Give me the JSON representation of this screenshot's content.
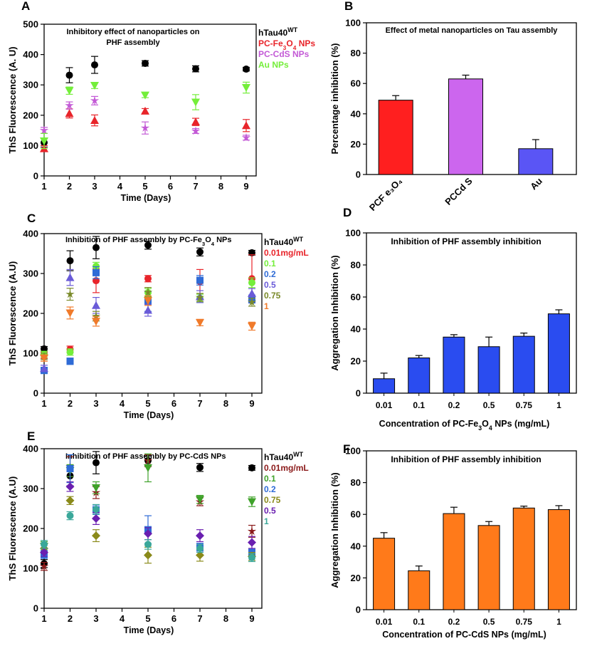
{
  "chart_data": [
    {
      "panel_label": "A",
      "type": "scatter",
      "title": "Inhibitory effect of nanoparticles on PHF assembly",
      "title_lines": [
        "Inhibitory effect of nanoparticles on",
        "PHF assembly"
      ],
      "xlabel": "Time (Days)",
      "ylabel": "ThS Fluorescence (A. U)",
      "xlim": [
        1,
        9
      ],
      "ylim": [
        0,
        500
      ],
      "x_ticks": [
        1,
        2,
        3,
        4,
        5,
        6,
        7,
        8,
        9
      ],
      "y_ticks": [
        0,
        100,
        200,
        300,
        400,
        500
      ],
      "legend_position": "top-right",
      "series": [
        {
          "name": "hTau40WT",
          "legend_main": "hTau40",
          "legend_sup": "WT",
          "color": "#000000",
          "marker": "circle",
          "x": [
            1,
            2,
            3,
            5,
            7,
            9
          ],
          "y": [
            110,
            332,
            366,
            371,
            353,
            352
          ],
          "err": [
            15,
            25,
            28,
            9,
            10,
            6
          ]
        },
        {
          "name": "PC-Fe3O4 NPs",
          "legend_main": "PC-Fe",
          "legend_sub1": "3",
          "legend_mid": "O",
          "legend_sub2": "4",
          "legend_end": " NPs",
          "color": "#e8242a",
          "marker": "triangle-up",
          "x": [
            1,
            2,
            3,
            5,
            7,
            9
          ],
          "y": [
            90,
            206,
            183,
            214,
            178,
            166
          ],
          "err": [
            10,
            15,
            18,
            8,
            12,
            20
          ]
        },
        {
          "name": "PC-CdS NPs",
          "legend_main": "PC-CdS NPs",
          "color": "#c35ad6",
          "marker": "star",
          "x": [
            1,
            2,
            3,
            5,
            7,
            9
          ],
          "y": [
            150,
            232,
            248,
            158,
            148,
            126
          ],
          "err": [
            10,
            12,
            14,
            20,
            8,
            8
          ]
        },
        {
          "name": "Au NPs",
          "legend_main": "Au NPs",
          "color": "#74ee3a",
          "marker": "triangle-down",
          "x": [
            1,
            2,
            3,
            5,
            7,
            9
          ],
          "y": [
            115,
            281,
            298,
            266,
            243,
            291
          ],
          "err": [
            25,
            12,
            10,
            8,
            25,
            18
          ]
        }
      ]
    },
    {
      "panel_label": "B",
      "type": "bar",
      "title": "Effect of metal nanoparticles on Tau assembly",
      "ylabel": "Percentage inhibition (%)",
      "ylim": [
        0,
        100
      ],
      "y_ticks": [
        0,
        20,
        40,
        60,
        80,
        100
      ],
      "categories": [
        "PCFe3O4",
        "PCCdS",
        "Au"
      ],
      "category_labels": [
        "PCF e₃O₄",
        "PCCd S",
        "Au"
      ],
      "values": [
        49,
        63,
        17
      ],
      "errors": [
        3,
        2.5,
        6
      ],
      "colors": [
        "#ff1f1f",
        "#cc66ee",
        "#5a55f5"
      ]
    },
    {
      "panel_label": "C",
      "type": "scatter",
      "title": "Inhibition of PHF assembly by PC-Fe3O4 NPs",
      "title_main": "Inhibition of PHF assembly by PC-Fe",
      "title_sub1": "3",
      "title_mid": "O",
      "title_sub2": "4",
      "title_end": " NPs",
      "xlabel": "Time (Days)",
      "ylabel": "ThS Fluorescence (A.U)",
      "xlim": [
        1,
        9
      ],
      "ylim": [
        0,
        400
      ],
      "x_ticks": [
        1,
        2,
        3,
        4,
        5,
        6,
        7,
        8,
        9
      ],
      "y_ticks": [
        0,
        100,
        200,
        300,
        400
      ],
      "legend_position": "top-right",
      "series": [
        {
          "name": "hTau40WT",
          "legend_main": "hTau40",
          "legend_sup": "WT",
          "color": "#000000",
          "marker": "circle",
          "x": [
            1,
            2,
            3,
            5,
            7,
            9
          ],
          "y": [
            111,
            332,
            365,
            371,
            354,
            352
          ],
          "err": [
            6,
            25,
            28,
            10,
            10,
            6
          ]
        },
        {
          "name": "0.01mg/mL",
          "color": "#e8242a",
          "marker": "circle",
          "x": [
            1,
            2,
            3,
            5,
            7,
            9
          ],
          "y": [
            95,
            110,
            282,
            287,
            280,
            287
          ],
          "err": [
            8,
            8,
            30,
            8,
            30,
            60
          ]
        },
        {
          "name": "0.1",
          "color": "#74ee3a",
          "marker": "circle",
          "x": [
            1,
            2,
            3,
            5,
            7,
            9
          ],
          "y": [
            97,
            103,
            318,
            252,
            238,
            277
          ],
          "err": [
            8,
            8,
            10,
            10,
            10,
            12
          ]
        },
        {
          "name": "0.2",
          "color": "#2f6bd6",
          "marker": "square",
          "x": [
            1,
            2,
            3,
            5,
            7,
            9
          ],
          "y": [
            57,
            80,
            302,
            230,
            283,
            236
          ],
          "err": [
            8,
            8,
            15,
            25,
            12,
            10
          ]
        },
        {
          "name": "0.5",
          "color": "#6a5bd8",
          "marker": "triangle-up",
          "x": [
            1,
            2,
            3,
            5,
            7,
            9
          ],
          "y": [
            62,
            290,
            220,
            208,
            242,
            250
          ],
          "err": [
            8,
            20,
            20,
            15,
            15,
            12
          ]
        },
        {
          "name": "0.75",
          "color": "#7a8a2a",
          "marker": "star",
          "x": [
            1,
            2,
            3,
            5,
            7,
            9
          ],
          "y": [
            92,
            248,
            193,
            253,
            240,
            228
          ],
          "err": [
            8,
            15,
            12,
            12,
            10,
            10
          ]
        },
        {
          "name": "1",
          "color": "#f07a2a",
          "marker": "triangle-down",
          "x": [
            1,
            2,
            3,
            5,
            7,
            9
          ],
          "y": [
            88,
            201,
            180,
            232,
            177,
            168
          ],
          "err": [
            8,
            15,
            12,
            12,
            8,
            10
          ]
        }
      ]
    },
    {
      "panel_label": "D",
      "type": "bar",
      "title": "Inhibition of PHF assembly inhibition",
      "xlabel": "Concentration of PC-Fe3O4 NPs (mg/mL)",
      "xlabel_main": "Concentration of PC-Fe",
      "xlabel_sub1": "3",
      "xlabel_mid": "O",
      "xlabel_sub2": "4",
      "xlabel_end": " NPs (mg/mL)",
      "ylabel": "Aggregation Inhibition (%)",
      "ylim": [
        0,
        100
      ],
      "y_ticks": [
        0,
        20,
        40,
        60,
        80,
        100
      ],
      "categories": [
        "0.01",
        "0.1",
        "0.2",
        "0.5",
        "0.75",
        "1"
      ],
      "values": [
        9,
        22,
        35,
        29,
        35.5,
        49.5
      ],
      "errors": [
        3.5,
        1.5,
        1.5,
        6,
        2,
        2.5
      ],
      "colors": [
        "#2a4cf0"
      ]
    },
    {
      "panel_label": "E",
      "type": "scatter",
      "title": "Inhibition of PHF assembly by PC-CdS NPs",
      "xlabel": "Time (Days)",
      "ylabel": "ThS Fluorescence (A.U)",
      "xlim": [
        1,
        9
      ],
      "ylim": [
        0,
        400
      ],
      "x_ticks": [
        1,
        2,
        3,
        4,
        5,
        6,
        7,
        8,
        9
      ],
      "y_ticks": [
        0,
        100,
        200,
        300,
        400
      ],
      "legend_position": "top-right",
      "series": [
        {
          "name": "hTau40WT",
          "legend_main": "hTau40",
          "legend_sup": "WT",
          "color": "#000000",
          "marker": "circle",
          "x": [
            1,
            2,
            3,
            5,
            7,
            9
          ],
          "y": [
            112,
            332,
            365,
            370,
            353,
            352
          ],
          "err": [
            10,
            25,
            28,
            12,
            10,
            6
          ]
        },
        {
          "name": "0.01mg/mL",
          "color": "#8b1a1a",
          "marker": "star",
          "x": [
            1,
            2,
            3,
            5,
            7,
            9
          ],
          "y": [
            105,
            355,
            290,
            370,
            267,
            193
          ],
          "err": [
            10,
            25,
            15,
            15,
            10,
            15
          ]
        },
        {
          "name": "0.1",
          "color": "#3fa22a",
          "marker": "triangle-down",
          "x": [
            1,
            2,
            3,
            5,
            7,
            9
          ],
          "y": [
            155,
            345,
            302,
            352,
            273,
            267
          ],
          "err": [
            12,
            15,
            15,
            35,
            10,
            12
          ]
        },
        {
          "name": "0.2",
          "color": "#2f6bd6",
          "marker": "square",
          "x": [
            1,
            2,
            3,
            5,
            7,
            9
          ],
          "y": [
            135,
            350,
            247,
            197,
            153,
            140
          ],
          "err": [
            10,
            35,
            12,
            35,
            10,
            10
          ]
        },
        {
          "name": "0.75",
          "color": "#8a8a1a",
          "marker": "diamond",
          "x": [
            1,
            2,
            3,
            5,
            7,
            9
          ],
          "y": [
            150,
            270,
            182,
            133,
            133,
            130
          ],
          "err": [
            10,
            10,
            15,
            20,
            15,
            10
          ]
        },
        {
          "name": "0.5",
          "color": "#6a1fb0",
          "marker": "diamond",
          "x": [
            1,
            2,
            3,
            5,
            7,
            9
          ],
          "y": [
            140,
            305,
            225,
            187,
            182,
            165
          ],
          "err": [
            10,
            12,
            15,
            15,
            15,
            15
          ]
        },
        {
          "name": "1",
          "color": "#3aa89a",
          "marker": "circle",
          "x": [
            1,
            2,
            3,
            5,
            7,
            9
          ],
          "y": [
            160,
            232,
            248,
            160,
            150,
            127
          ],
          "err": [
            10,
            10,
            12,
            12,
            10,
            10
          ]
        }
      ]
    },
    {
      "panel_label": "F",
      "type": "bar",
      "title": "Inhibition of PHF assembly inhibition",
      "xlabel": "Concentration of PC-CdS NPs (mg/mL)",
      "ylabel": "Aggregation Inhibition (%)",
      "ylim": [
        0,
        100
      ],
      "y_ticks": [
        0,
        20,
        40,
        60,
        80,
        100
      ],
      "categories": [
        "0.01",
        "0.1",
        "0.2",
        "0.5",
        "0.75",
        "1"
      ],
      "values": [
        45,
        24.5,
        60.5,
        53,
        64,
        63
      ],
      "errors": [
        3.5,
        3,
        4,
        2.5,
        1.2,
        2.5
      ],
      "colors": [
        "#ff7a1a"
      ]
    }
  ]
}
